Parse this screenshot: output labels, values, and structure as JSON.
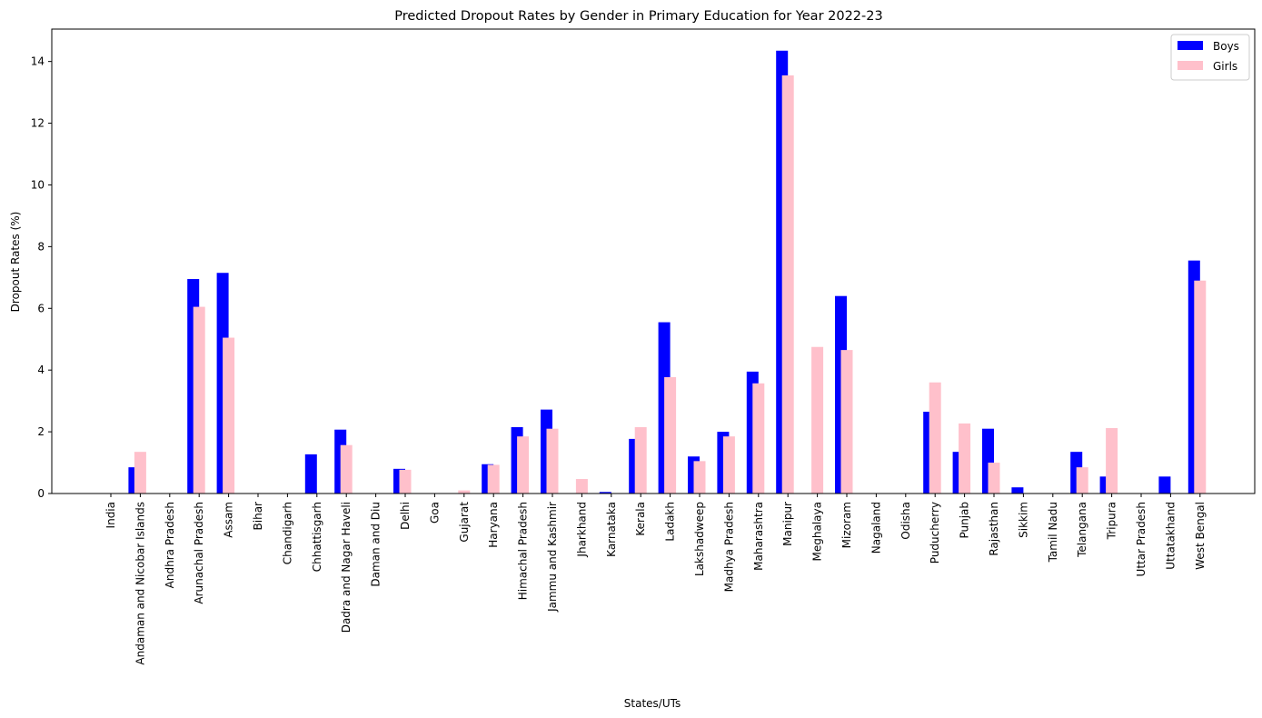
{
  "chart_data": {
    "type": "bar",
    "title": "Predicted Dropout Rates by Gender in Primary Education for Year 2022-23",
    "xlabel": "States/UTs",
    "ylabel": "Dropout Rates (%)",
    "ylim": [
      0,
      15.05
    ],
    "yticks": [
      0,
      2,
      4,
      6,
      8,
      10,
      12,
      14
    ],
    "grid": false,
    "legend_position": "top-right",
    "colors": {
      "Boys": "#0000ff",
      "Girls": "#ffc0cb"
    },
    "categories": [
      "India",
      "Andaman and Nicobar Islands",
      "Andhra Pradesh",
      "Arunachal Pradesh",
      "Assam",
      "Bihar",
      "Chandigarh",
      "Chhattisgarh",
      "Dadra and Nagar Haveli",
      "Daman and Diu",
      "Delhi",
      "Goa",
      "Gujarat",
      "Haryana",
      "Himachal Pradesh",
      "Jammu and Kashmir",
      "Jharkhand",
      "Karnataka",
      "Kerala",
      "Ladakh",
      "Lakshadweep",
      "Madhya Pradesh",
      "Maharashtra",
      "Manipur",
      "Meghalaya",
      "Mizoram",
      "Nagaland",
      "Odisha",
      "Puducherry",
      "Punjab",
      "Rajasthan",
      "Sikkim",
      "Tamil Nadu",
      "Telangana",
      "Tripura",
      "Uttar Pradesh",
      "Uttatakhand",
      "West Bengal"
    ],
    "series": [
      {
        "name": "Boys",
        "values": [
          0,
          0.85,
          0,
          6.95,
          7.15,
          0,
          0,
          1.27,
          2.07,
          0,
          0.8,
          0,
          0,
          0.95,
          2.15,
          2.72,
          0,
          0.05,
          1.77,
          5.55,
          1.2,
          2.0,
          3.95,
          14.35,
          0,
          6.4,
          0,
          0,
          2.65,
          1.35,
          2.1,
          0.2,
          0,
          1.35,
          0.55,
          0,
          0.55,
          7.55
        ]
      },
      {
        "name": "Girls",
        "values": [
          0,
          1.35,
          0,
          6.05,
          5.05,
          0,
          0,
          0,
          1.57,
          0,
          0.77,
          0,
          0.1,
          0.93,
          1.85,
          2.1,
          0.47,
          0,
          2.15,
          3.77,
          1.05,
          1.85,
          3.57,
          13.55,
          4.75,
          4.65,
          0,
          0,
          3.6,
          2.27,
          1.0,
          0,
          0,
          0.85,
          2.12,
          0,
          0,
          6.9
        ]
      }
    ]
  }
}
